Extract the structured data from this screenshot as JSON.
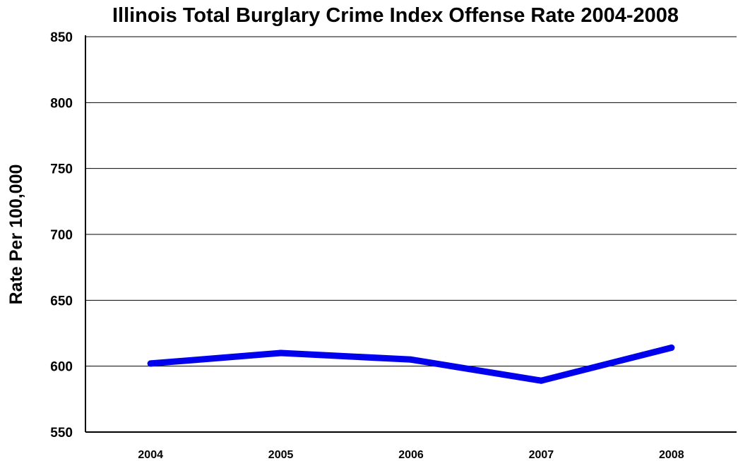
{
  "chart_data": {
    "type": "line",
    "title": "Illinois Total Burglary Crime Index Offense Rate 2004-2008",
    "xlabel": "",
    "ylabel": "Rate Per 100,000",
    "categories": [
      "2004",
      "2005",
      "2006",
      "2007",
      "2008"
    ],
    "series": [
      {
        "values": [
          602,
          610,
          605,
          589,
          614
        ],
        "color": "#0000ee"
      }
    ],
    "ylim": [
      550,
      850
    ],
    "yticks": [
      550,
      600,
      650,
      700,
      750,
      800,
      850
    ],
    "grid": true,
    "legend": "none"
  }
}
